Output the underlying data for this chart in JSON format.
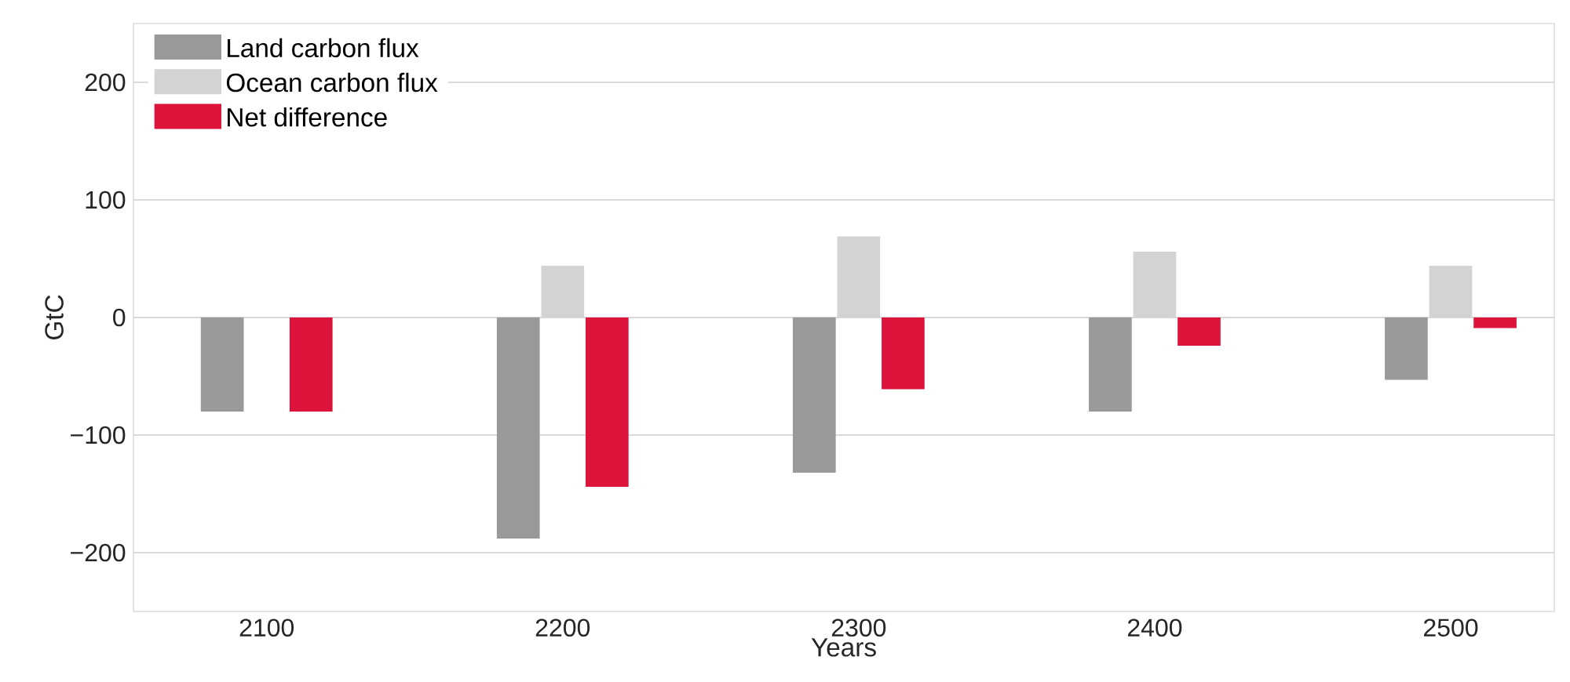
{
  "chart_data": {
    "type": "bar",
    "xlabel": "Years",
    "ylabel": "GtC",
    "categories": [
      "2100",
      "2200",
      "2300",
      "2400",
      "2500"
    ],
    "series": [
      {
        "name": "Land carbon flux",
        "color": "#999999",
        "values": [
          -80,
          -188,
          -132,
          -80,
          -53
        ]
      },
      {
        "name": "Ocean carbon flux",
        "color": "#d3d3d3",
        "values": [
          0,
          44,
          69,
          56,
          44
        ]
      },
      {
        "name": "Net difference",
        "color": "#dc143c",
        "values": [
          -80,
          -144,
          -61,
          -24,
          -9
        ]
      }
    ],
    "ylim": [
      -250,
      250
    ],
    "yticks": [
      {
        "value": -200,
        "label": "−200"
      },
      {
        "value": -100,
        "label": "−100"
      },
      0,
      100,
      200
    ],
    "grid": "y",
    "legend": "top left"
  }
}
